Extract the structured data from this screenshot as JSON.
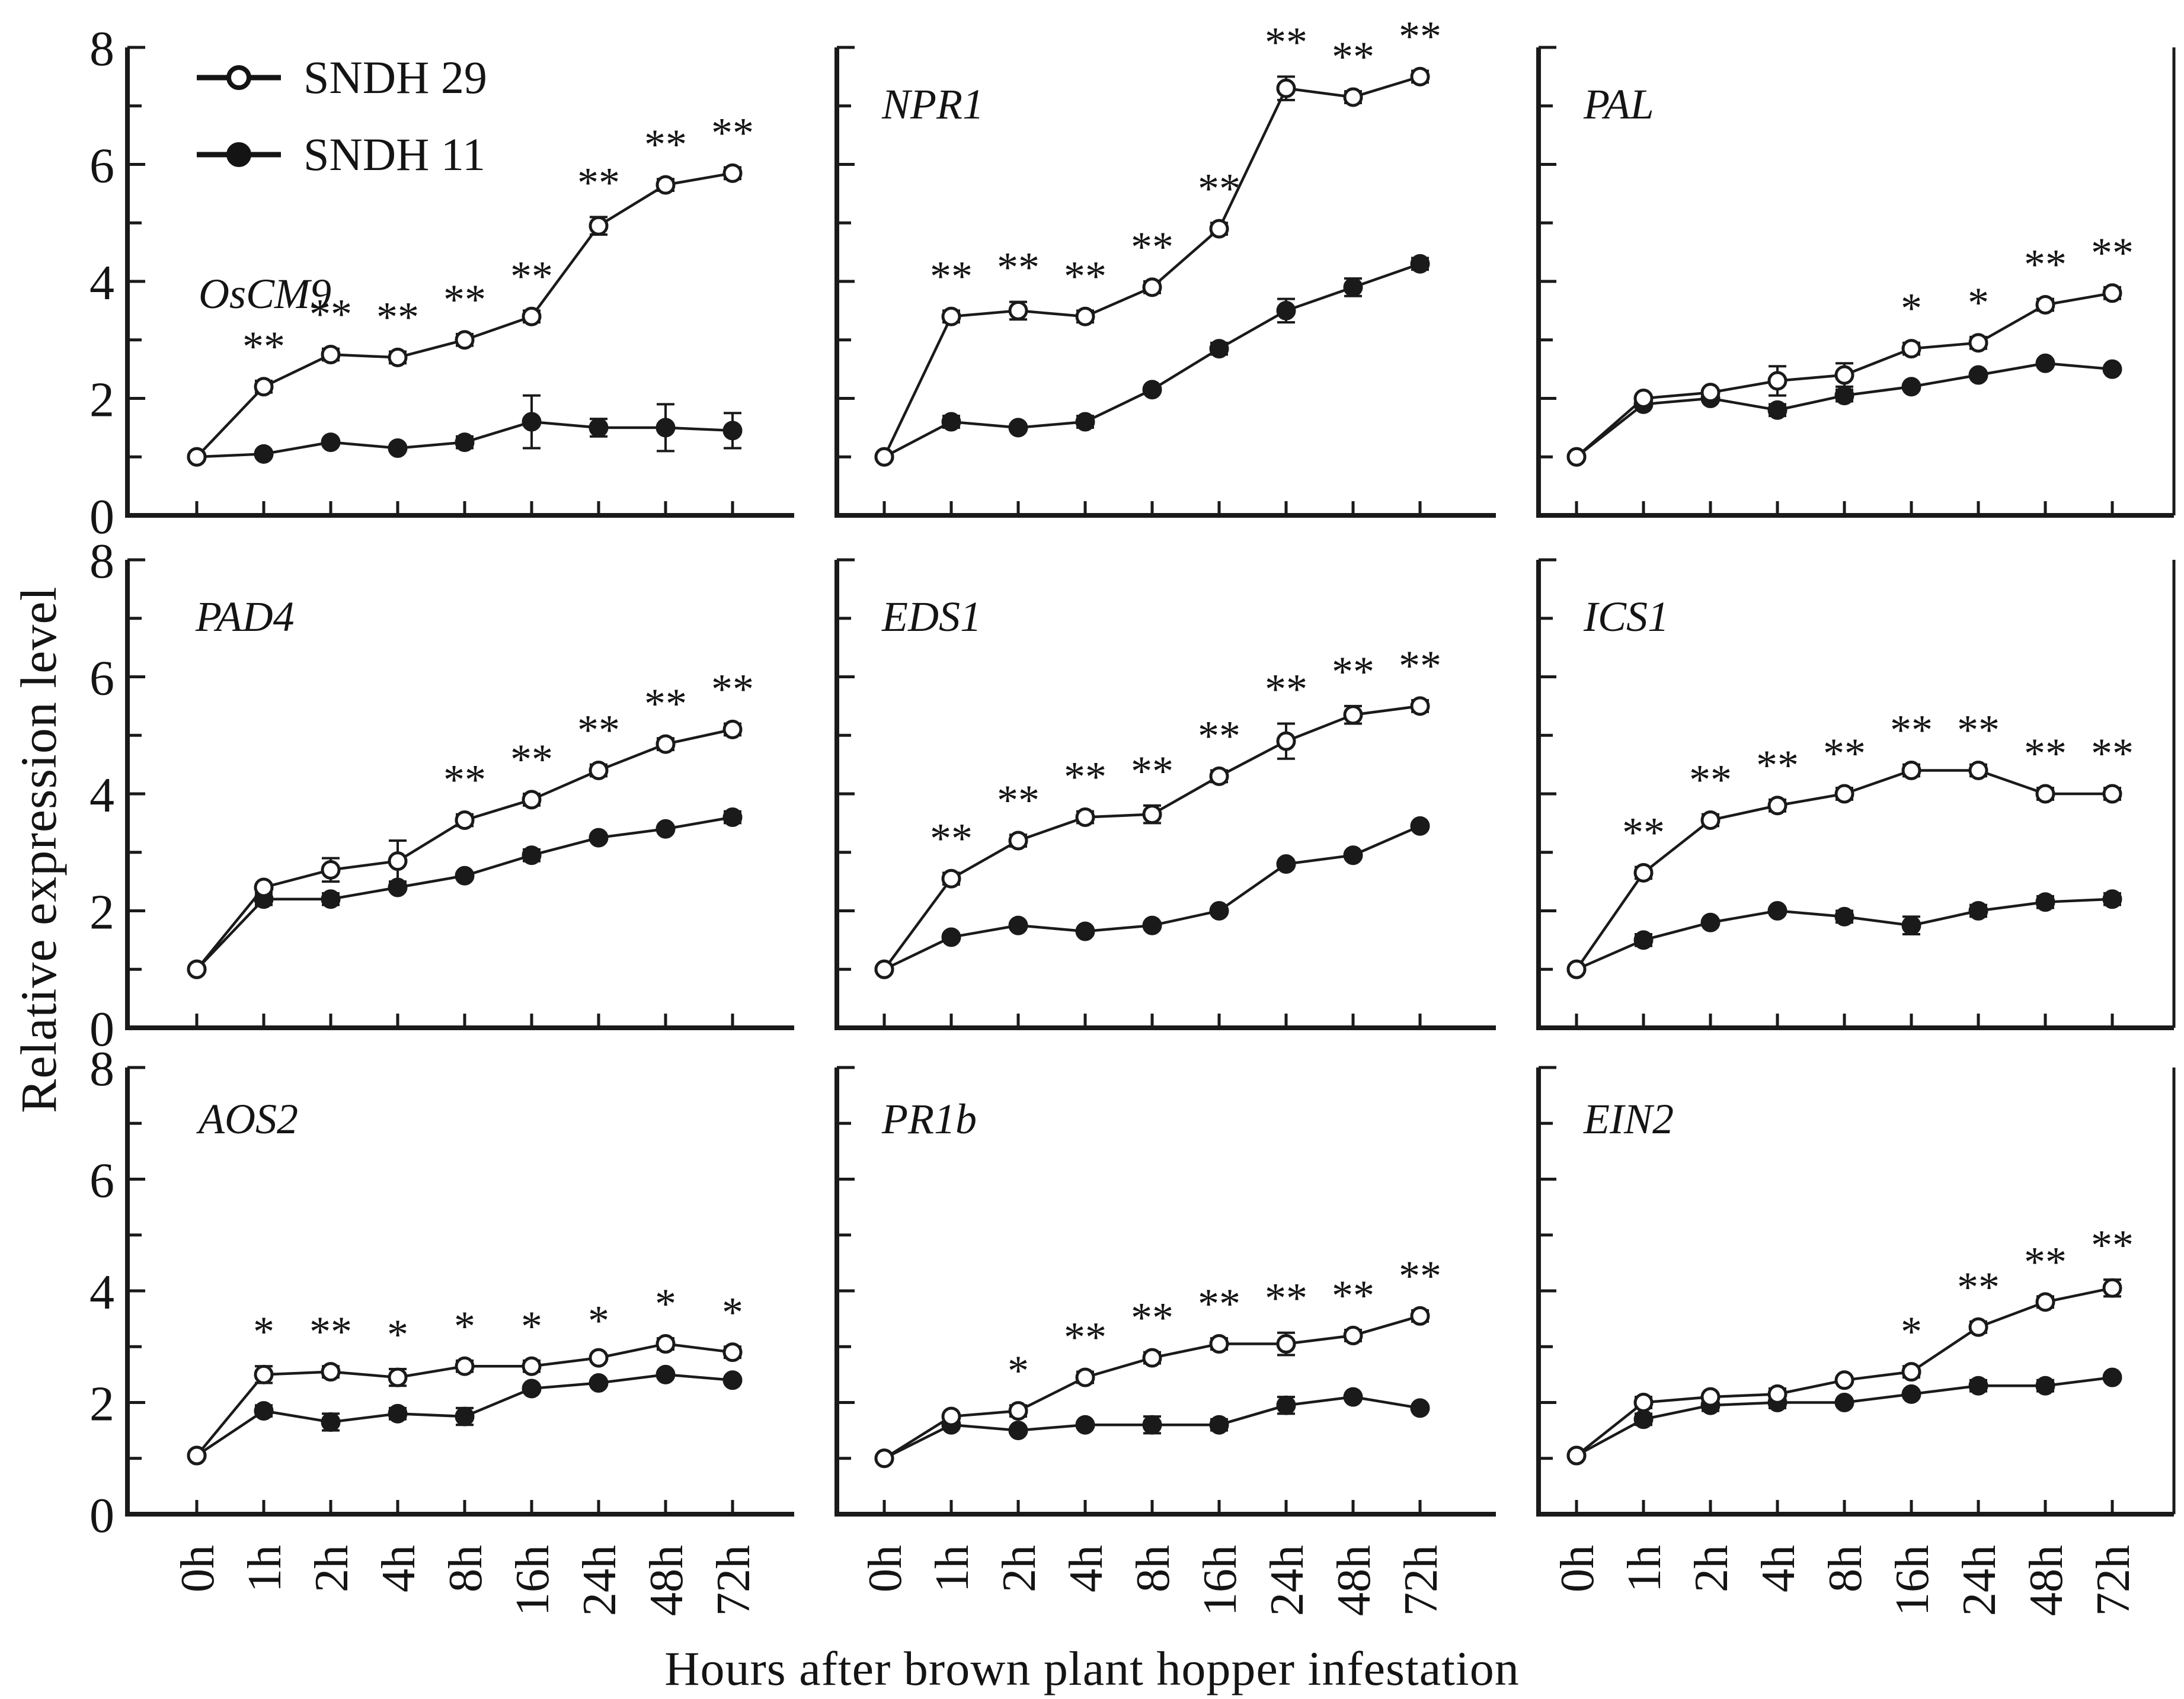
{
  "figure": {
    "ylabel": "Relative expression level",
    "xlabel": "Hours after brown plant hopper infestation",
    "legend": [
      {
        "label": "SNDH 29",
        "marker": "open-circle"
      },
      {
        "label": "SNDH 11",
        "marker": "filled-circle"
      }
    ],
    "colors": {
      "line": "#1a1a1a",
      "marker_fill_open": "#ffffff",
      "marker_fill_solid": "#141414",
      "background": "#ffffff"
    },
    "significance_symbols": {
      "single": "*",
      "double": "**"
    }
  },
  "chart_data": {
    "type": "line",
    "layout": "3x3 panel grid, shared axes; y tick labels on left column only, x tick labels on bottom row only, legend in first panel",
    "categories": [
      "0h",
      "1h",
      "2h",
      "4h",
      "8h",
      "16h",
      "24h",
      "48h",
      "72h"
    ],
    "ylim": [
      0,
      8
    ],
    "yticks_labeled": [
      0,
      2,
      4,
      6,
      8
    ],
    "yticks_minor": [
      1,
      3,
      5,
      7
    ],
    "grid": false,
    "legend_position": "top-left of first panel",
    "error_bars": true,
    "panels": [
      {
        "gene": "OsCM9",
        "series": [
          {
            "name": "SNDH 29",
            "marker": "open-circle",
            "values": [
              1.0,
              2.2,
              2.75,
              2.7,
              3.0,
              3.4,
              4.95,
              5.65,
              5.85
            ],
            "err": [
              0,
              0.1,
              0.1,
              0.1,
              0.1,
              0.1,
              0.15,
              0.1,
              0.1
            ],
            "sig": [
              "",
              "**",
              "**",
              "**",
              "**",
              "**",
              "**",
              "**",
              "**"
            ]
          },
          {
            "name": "SNDH 11",
            "marker": "filled-circle",
            "values": [
              1.0,
              1.05,
              1.25,
              1.15,
              1.25,
              1.6,
              1.5,
              1.5,
              1.45
            ],
            "err": [
              0,
              0.05,
              0.05,
              0.05,
              0.1,
              0.45,
              0.15,
              0.4,
              0.3
            ],
            "sig": [
              "",
              "",
              "",
              "",
              "",
              "",
              "",
              "",
              ""
            ]
          }
        ]
      },
      {
        "gene": "NPR1",
        "series": [
          {
            "name": "SNDH 29",
            "marker": "open-circle",
            "values": [
              1.0,
              3.4,
              3.5,
              3.4,
              3.9,
              4.9,
              7.3,
              7.15,
              7.5
            ],
            "err": [
              0,
              0.1,
              0.15,
              0.1,
              0.1,
              0.1,
              0.2,
              0.1,
              0.1
            ],
            "sig": [
              "",
              "**",
              "**",
              "**",
              "**",
              "**",
              "**",
              "**",
              "**"
            ]
          },
          {
            "name": "SNDH 11",
            "marker": "filled-circle",
            "values": [
              1.0,
              1.6,
              1.5,
              1.6,
              2.15,
              2.85,
              3.5,
              3.9,
              4.3
            ],
            "err": [
              0,
              0.1,
              0.05,
              0.1,
              0.05,
              0.1,
              0.2,
              0.15,
              0.1
            ],
            "sig": [
              "",
              "",
              "",
              "",
              "",
              "",
              "",
              "",
              ""
            ]
          }
        ]
      },
      {
        "gene": "PAL",
        "series": [
          {
            "name": "SNDH 29",
            "marker": "open-circle",
            "values": [
              1.0,
              2.0,
              2.1,
              2.3,
              2.4,
              2.85,
              2.95,
              3.6,
              3.8
            ],
            "err": [
              0,
              0.05,
              0.05,
              0.25,
              0.2,
              0.1,
              0.1,
              0.1,
              0.1
            ],
            "sig": [
              "",
              "",
              "",
              "",
              "",
              "*",
              "*",
              "**",
              "**"
            ]
          },
          {
            "name": "SNDH 11",
            "marker": "filled-circle",
            "values": [
              1.0,
              1.9,
              2.0,
              1.8,
              2.05,
              2.2,
              2.4,
              2.6,
              2.5
            ],
            "err": [
              0,
              0.05,
              0.05,
              0.1,
              0.1,
              0.05,
              0.05,
              0.05,
              0.05
            ],
            "sig": [
              "",
              "",
              "",
              "",
              "",
              "",
              "",
              "",
              ""
            ]
          }
        ]
      },
      {
        "gene": "PAD4",
        "series": [
          {
            "name": "SNDH 29",
            "marker": "open-circle",
            "values": [
              1.0,
              2.4,
              2.7,
              2.85,
              3.55,
              3.9,
              4.4,
              4.85,
              5.1
            ],
            "err": [
              0,
              0.05,
              0.2,
              0.35,
              0.1,
              0.1,
              0.1,
              0.1,
              0.1
            ],
            "sig": [
              "",
              "",
              "",
              "",
              "**",
              "**",
              "**",
              "**",
              "**"
            ]
          },
          {
            "name": "SNDH 11",
            "marker": "filled-circle",
            "values": [
              1.0,
              2.2,
              2.2,
              2.4,
              2.6,
              2.95,
              3.25,
              3.4,
              3.6
            ],
            "err": [
              0,
              0.1,
              0.1,
              0.05,
              0.05,
              0.1,
              0.05,
              0.05,
              0.1
            ],
            "sig": [
              "",
              "",
              "",
              "",
              "",
              "",
              "",
              "",
              ""
            ]
          }
        ]
      },
      {
        "gene": "EDS1",
        "series": [
          {
            "name": "SNDH 29",
            "marker": "open-circle",
            "values": [
              1.0,
              2.55,
              3.2,
              3.6,
              3.65,
              4.3,
              4.9,
              5.35,
              5.5
            ],
            "err": [
              0,
              0.1,
              0.1,
              0.1,
              0.15,
              0.1,
              0.3,
              0.15,
              0.1
            ],
            "sig": [
              "",
              "**",
              "**",
              "**",
              "**",
              "**",
              "**",
              "**",
              "**"
            ]
          },
          {
            "name": "SNDH 11",
            "marker": "filled-circle",
            "values": [
              1.0,
              1.55,
              1.75,
              1.65,
              1.75,
              2.0,
              2.8,
              2.95,
              3.45
            ],
            "err": [
              0,
              0.05,
              0.05,
              0.05,
              0.05,
              0.05,
              0.05,
              0.05,
              0.05
            ],
            "sig": [
              "",
              "",
              "",
              "",
              "",
              "",
              "",
              "",
              ""
            ]
          }
        ]
      },
      {
        "gene": "ICS1",
        "series": [
          {
            "name": "SNDH 29",
            "marker": "open-circle",
            "values": [
              1.0,
              2.65,
              3.55,
              3.8,
              4.0,
              4.4,
              4.4,
              4.0,
              4.0
            ],
            "err": [
              0,
              0.1,
              0.1,
              0.1,
              0.1,
              0.1,
              0.1,
              0.1,
              0.1
            ],
            "sig": [
              "",
              "**",
              "**",
              "**",
              "**",
              "**",
              "**",
              "**",
              "**"
            ]
          },
          {
            "name": "SNDH 11",
            "marker": "filled-circle",
            "values": [
              1.0,
              1.5,
              1.8,
              2.0,
              1.9,
              1.75,
              2.0,
              2.15,
              2.2
            ],
            "err": [
              0,
              0.1,
              0.05,
              0.05,
              0.1,
              0.15,
              0.1,
              0.1,
              0.1
            ],
            "sig": [
              "",
              "",
              "",
              "",
              "",
              "",
              "",
              "",
              ""
            ]
          }
        ]
      },
      {
        "gene": "AOS2",
        "series": [
          {
            "name": "SNDH 29",
            "marker": "open-circle",
            "values": [
              1.05,
              2.5,
              2.55,
              2.45,
              2.65,
              2.65,
              2.8,
              3.05,
              2.9
            ],
            "err": [
              0,
              0.15,
              0.1,
              0.15,
              0.1,
              0.1,
              0.05,
              0.1,
              0.1
            ],
            "sig": [
              "",
              "*",
              "**",
              "*",
              "*",
              "*",
              "*",
              "*",
              "*"
            ]
          },
          {
            "name": "SNDH 11",
            "marker": "filled-circle",
            "values": [
              1.05,
              1.85,
              1.65,
              1.8,
              1.75,
              2.25,
              2.35,
              2.5,
              2.4
            ],
            "err": [
              0,
              0.1,
              0.15,
              0.1,
              0.15,
              0.05,
              0.05,
              0.05,
              0.05
            ],
            "sig": [
              "",
              "",
              "",
              "",
              "",
              "",
              "",
              "",
              ""
            ]
          }
        ]
      },
      {
        "gene": "PR1b",
        "series": [
          {
            "name": "SNDH 29",
            "marker": "open-circle",
            "values": [
              1.0,
              1.75,
              1.85,
              2.45,
              2.8,
              3.05,
              3.05,
              3.2,
              3.55
            ],
            "err": [
              0,
              0.05,
              0.1,
              0.1,
              0.1,
              0.1,
              0.2,
              0.1,
              0.1
            ],
            "sig": [
              "",
              "",
              "*",
              "**",
              "**",
              "**",
              "**",
              "**",
              "**"
            ]
          },
          {
            "name": "SNDH 11",
            "marker": "filled-circle",
            "values": [
              1.0,
              1.6,
              1.5,
              1.6,
              1.6,
              1.6,
              1.95,
              2.1,
              1.9
            ],
            "err": [
              0,
              0.05,
              0.05,
              0.05,
              0.15,
              0.1,
              0.15,
              0.05,
              0.05
            ],
            "sig": [
              "",
              "",
              "",
              "",
              "",
              "",
              "",
              "",
              ""
            ]
          }
        ]
      },
      {
        "gene": "EIN2",
        "series": [
          {
            "name": "SNDH 29",
            "marker": "open-circle",
            "values": [
              1.05,
              2.0,
              2.1,
              2.15,
              2.4,
              2.55,
              3.35,
              3.8,
              4.05
            ],
            "err": [
              0,
              0.1,
              0.05,
              0.1,
              0.05,
              0.1,
              0.1,
              0.1,
              0.15
            ],
            "sig": [
              "",
              "",
              "",
              "",
              "",
              "*",
              "**",
              "**",
              "**"
            ]
          },
          {
            "name": "SNDH 11",
            "marker": "filled-circle",
            "values": [
              1.05,
              1.7,
              1.95,
              2.0,
              2.0,
              2.15,
              2.3,
              2.3,
              2.45
            ],
            "err": [
              0,
              0.1,
              0.1,
              0.1,
              0.05,
              0.05,
              0.1,
              0.1,
              0.05
            ],
            "sig": [
              "",
              "",
              "",
              "",
              "",
              "",
              "",
              "",
              ""
            ]
          }
        ]
      }
    ]
  }
}
